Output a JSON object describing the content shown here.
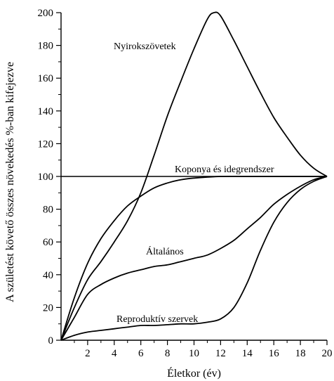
{
  "chart_data": {
    "type": "line",
    "xlabel": "Életkor (év)",
    "ylabel": "A születést követő összes növekedés %-ban kifejezve",
    "xlim": [
      0,
      20
    ],
    "ylim": [
      0,
      200
    ],
    "xticks": [
      2,
      4,
      6,
      8,
      10,
      12,
      14,
      16,
      18,
      20
    ],
    "xtick_labels": [
      "2",
      "4",
      "6",
      "8",
      "10",
      "12",
      "14",
      "16",
      "18",
      "20"
    ],
    "yticks": [
      0,
      20,
      40,
      60,
      80,
      100,
      120,
      140,
      160,
      180,
      200
    ],
    "ytick_labels": [
      "0",
      "20",
      "40",
      "60",
      "80",
      "100",
      "120",
      "140",
      "160",
      "180",
      "200"
    ],
    "grid": false,
    "legend": "none",
    "reference_line": {
      "y": 100
    },
    "series": [
      {
        "name": "Nyirokszövetek",
        "x": [
          0,
          1,
          2,
          3,
          4,
          5,
          6,
          7,
          8,
          9,
          10,
          11,
          11.5,
          12,
          13,
          14,
          15,
          16,
          17,
          18,
          19,
          20
        ],
        "y": [
          0,
          20,
          37,
          48,
          60,
          73,
          90,
          113,
          137,
          158,
          178,
          196,
          200,
          198,
          183,
          167,
          151,
          136,
          124,
          113,
          105,
          100
        ]
      },
      {
        "name": "Koponya és idegrendszer",
        "x": [
          0,
          1,
          2,
          3,
          4,
          5,
          6,
          7,
          8,
          9,
          10,
          12,
          14,
          16,
          18,
          20
        ],
        "y": [
          0,
          26,
          47,
          62,
          73,
          82,
          88,
          93,
          96,
          98,
          99,
          100,
          100,
          100,
          100,
          100
        ]
      },
      {
        "name": "Általános",
        "x": [
          0,
          1,
          2,
          3,
          4,
          5,
          6,
          7,
          8,
          9,
          10,
          11,
          12,
          13,
          14,
          15,
          16,
          17,
          18,
          19,
          20
        ],
        "y": [
          0,
          14,
          28,
          34,
          38,
          41,
          43,
          45,
          46,
          48,
          50,
          52,
          56,
          61,
          68,
          75,
          83,
          89,
          94,
          98,
          100
        ]
      },
      {
        "name": "Reproduktív szervek",
        "x": [
          0,
          1,
          2,
          3,
          4,
          5,
          6,
          7,
          8,
          9,
          10,
          11,
          12,
          13,
          14,
          15,
          16,
          17,
          18,
          19,
          20
        ],
        "y": [
          0,
          3,
          5,
          6,
          7,
          8,
          9,
          9,
          9.5,
          10,
          10,
          11,
          13,
          20,
          35,
          55,
          72,
          84,
          92,
          97,
          100
        ]
      }
    ]
  }
}
